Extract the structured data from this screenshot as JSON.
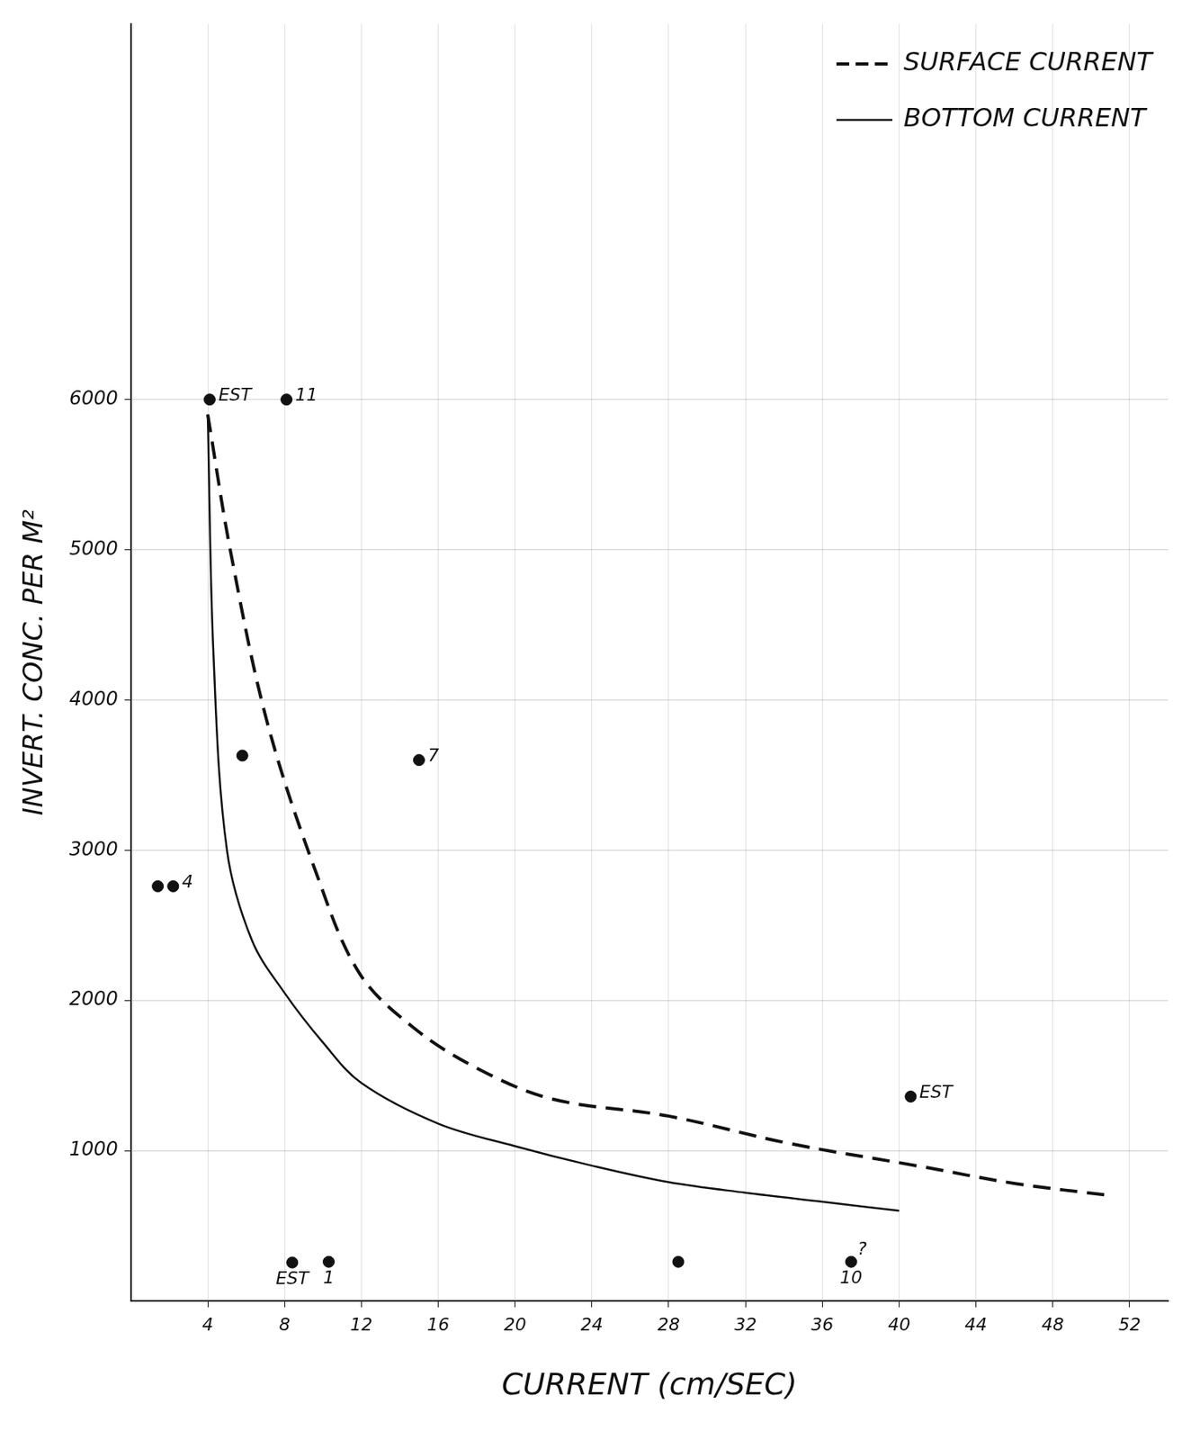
{
  "chart_data": {
    "type": "scatter",
    "x_label": "CURRENT (cm/SEC)",
    "y_label": "INVERT. CONC. PER M²",
    "xlim": [
      0,
      54
    ],
    "ylim": [
      0,
      8500
    ],
    "xticks": [
      4,
      8,
      12,
      16,
      20,
      24,
      28,
      32,
      36,
      40,
      44,
      48,
      52
    ],
    "yticks": [
      1000,
      2000,
      3000,
      4000,
      5000,
      6000
    ],
    "grid": true,
    "legend": "upper right",
    "series": [
      {
        "name": "SURFACE CURRENT",
        "type": "line",
        "line_style": "dashed",
        "color": "#111111",
        "x": [
          4,
          5.2,
          7.1,
          9.7,
          11.9,
          14.7,
          18,
          21.9,
          28,
          34.2,
          40.9,
          46.1,
          51.1
        ],
        "values": [
          5900,
          4980,
          3850,
          2830,
          2180,
          1820,
          1550,
          1345,
          1230,
          1050,
          900,
          780,
          700
        ]
      },
      {
        "name": "BOTTOM CURRENT",
        "type": "line",
        "line_style": "solid",
        "color": "#111111",
        "x": [
          4,
          4.3,
          5,
          6.3,
          8,
          10,
          12,
          16,
          20,
          24,
          28,
          32,
          36,
          40
        ],
        "values": [
          5900,
          4300,
          3000,
          2400,
          2050,
          1720,
          1450,
          1180,
          1030,
          900,
          790,
          720,
          660,
          600
        ]
      }
    ],
    "points": {
      "type": "scatter",
      "marker": "circle",
      "color": "#111111",
      "x": [
        4.1,
        8.1,
        5.8,
        15.0,
        1.4,
        2.2,
        40.6,
        8.4,
        10.3,
        28.5,
        37.5
      ],
      "values": [
        6000,
        6000,
        3630,
        3600,
        2760,
        2760,
        1360,
        255,
        260,
        260,
        260
      ],
      "labels": [
        "EST",
        "11",
        null,
        "7",
        null,
        "4",
        "EST",
        "EST",
        "1",
        null,
        "10"
      ],
      "notes": [
        null,
        null,
        null,
        null,
        null,
        null,
        null,
        null,
        null,
        null,
        "?"
      ]
    }
  }
}
